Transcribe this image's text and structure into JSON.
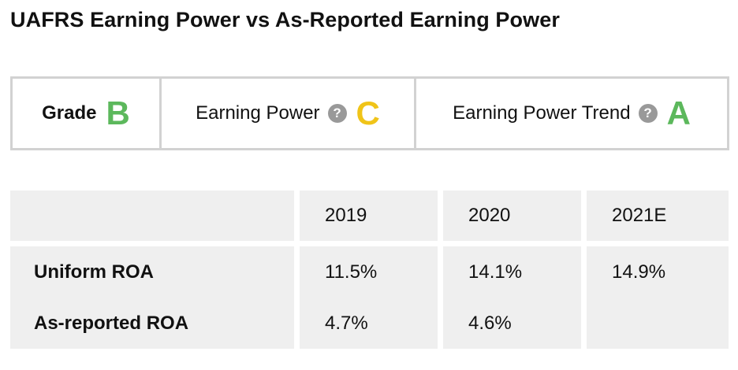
{
  "title": "UAFRS Earning Power vs As-Reported Earning Power",
  "grades": {
    "grade_label": "Grade",
    "grade_value": "B",
    "earning_power_label": "Earning Power",
    "earning_power_value": "C",
    "trend_label": "Earning Power Trend",
    "trend_value": "A",
    "help_icon_glyph": "?",
    "colors": {
      "green": "#5cb85c",
      "yellow": "#f0c419",
      "help_icon": "#999999",
      "border": "#d2d2d2",
      "table_bg": "#efefef"
    }
  },
  "table": {
    "columns": [
      "",
      "2019",
      "2020",
      "2021E"
    ],
    "rows": [
      {
        "label": "Uniform ROA",
        "values": [
          "11.5%",
          "14.1%",
          "14.9%"
        ]
      },
      {
        "label": "As-reported ROA",
        "values": [
          "4.7%",
          "4.6%",
          ""
        ]
      }
    ]
  }
}
